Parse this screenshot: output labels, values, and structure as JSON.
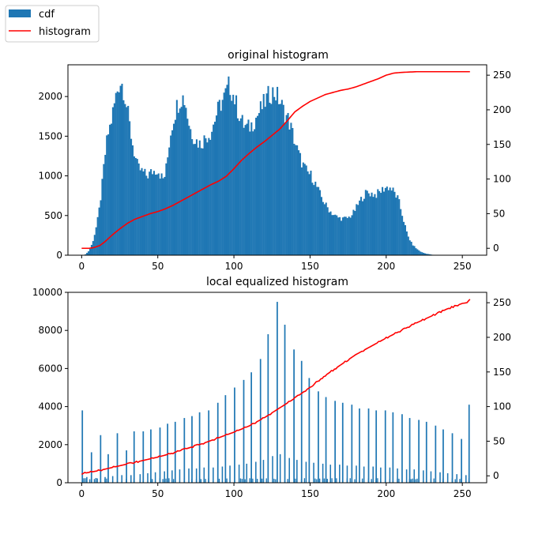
{
  "legend": {
    "placement": "upper-left",
    "items": [
      {
        "label": "cdf",
        "kind": "patch",
        "color": "#1f77b4"
      },
      {
        "label": "histogram",
        "kind": "line",
        "color": "#ff0000"
      }
    ]
  },
  "chart_data": [
    {
      "type": "bar",
      "title": "original histogram",
      "xlabel": "",
      "ylabel": "",
      "xlim": [
        -9,
        266
      ],
      "ylim": [
        0,
        2400
      ],
      "y2lim": [
        -10,
        265
      ],
      "xticks": [
        0,
        50,
        100,
        150,
        200,
        250
      ],
      "yticks": [
        0,
        500,
        1000,
        1500,
        2000
      ],
      "y2ticks": [
        0,
        50,
        100,
        150,
        200,
        250
      ],
      "bar_color": "#1f77b4",
      "line_color": "#ff0000",
      "histogram_anchors": [
        [
          0,
          0
        ],
        [
          2,
          5
        ],
        [
          3,
          20
        ],
        [
          5,
          60
        ],
        [
          7,
          150
        ],
        [
          9,
          300
        ],
        [
          11,
          500
        ],
        [
          13,
          800
        ],
        [
          15,
          1200
        ],
        [
          17,
          1500
        ],
        [
          19,
          1650
        ],
        [
          21,
          1850
        ],
        [
          23,
          2050
        ],
        [
          25,
          2200
        ],
        [
          27,
          2150
        ],
        [
          29,
          1950
        ],
        [
          31,
          1700
        ],
        [
          33,
          1450
        ],
        [
          35,
          1250
        ],
        [
          37,
          1100
        ],
        [
          40,
          1050
        ],
        [
          43,
          1000
        ],
        [
          46,
          1050
        ],
        [
          50,
          1080
        ],
        [
          52,
          1000
        ],
        [
          54,
          950
        ],
        [
          56,
          1150
        ],
        [
          58,
          1500
        ],
        [
          60,
          1700
        ],
        [
          62,
          1850
        ],
        [
          64,
          1950
        ],
        [
          66,
          2000
        ],
        [
          68,
          1950
        ],
        [
          70,
          1700
        ],
        [
          72,
          1550
        ],
        [
          75,
          1450
        ],
        [
          78,
          1400
        ],
        [
          82,
          1500
        ],
        [
          85,
          1550
        ],
        [
          88,
          1750
        ],
        [
          91,
          1900
        ],
        [
          94,
          2000
        ],
        [
          97,
          2150
        ],
        [
          100,
          2000
        ],
        [
          103,
          1800
        ],
        [
          106,
          1650
        ],
        [
          109,
          1600
        ],
        [
          112,
          1650
        ],
        [
          115,
          1750
        ],
        [
          118,
          1850
        ],
        [
          121,
          1950
        ],
        [
          124,
          2050
        ],
        [
          127,
          2050
        ],
        [
          130,
          1950
        ],
        [
          133,
          1800
        ],
        [
          136,
          1700
        ],
        [
          139,
          1500
        ],
        [
          142,
          1300
        ],
        [
          145,
          1150
        ],
        [
          148,
          1050
        ],
        [
          151,
          1000
        ],
        [
          154,
          880
        ],
        [
          157,
          750
        ],
        [
          160,
          640
        ],
        [
          163,
          560
        ],
        [
          166,
          500
        ],
        [
          169,
          470
        ],
        [
          172,
          460
        ],
        [
          175,
          470
        ],
        [
          178,
          520
        ],
        [
          181,
          620
        ],
        [
          184,
          720
        ],
        [
          187,
          790
        ],
        [
          190,
          780
        ],
        [
          193,
          760
        ],
        [
          196,
          800
        ],
        [
          199,
          850
        ],
        [
          202,
          860
        ],
        [
          205,
          800
        ],
        [
          208,
          700
        ],
        [
          210,
          550
        ],
        [
          212,
          400
        ],
        [
          214,
          250
        ],
        [
          217,
          140
        ],
        [
          220,
          80
        ],
        [
          223,
          40
        ],
        [
          226,
          20
        ],
        [
          229,
          10
        ],
        [
          232,
          0
        ],
        [
          255,
          0
        ]
      ],
      "cdf_anchors": [
        [
          0,
          0
        ],
        [
          5,
          0
        ],
        [
          8,
          1
        ],
        [
          12,
          4
        ],
        [
          15,
          9
        ],
        [
          20,
          19
        ],
        [
          25,
          28
        ],
        [
          30,
          36
        ],
        [
          35,
          42
        ],
        [
          40,
          46
        ],
        [
          45,
          50
        ],
        [
          50,
          53
        ],
        [
          55,
          57
        ],
        [
          60,
          62
        ],
        [
          65,
          68
        ],
        [
          70,
          74
        ],
        [
          75,
          80
        ],
        [
          80,
          86
        ],
        [
          85,
          92
        ],
        [
          90,
          97
        ],
        [
          95,
          104
        ],
        [
          100,
          115
        ],
        [
          105,
          127
        ],
        [
          110,
          137
        ],
        [
          115,
          146
        ],
        [
          120,
          154
        ],
        [
          125,
          163
        ],
        [
          130,
          172
        ],
        [
          135,
          184
        ],
        [
          140,
          197
        ],
        [
          145,
          205
        ],
        [
          150,
          212
        ],
        [
          155,
          217
        ],
        [
          160,
          222
        ],
        [
          165,
          225
        ],
        [
          170,
          228
        ],
        [
          175,
          230
        ],
        [
          180,
          233
        ],
        [
          185,
          237
        ],
        [
          190,
          241
        ],
        [
          195,
          245
        ],
        [
          200,
          250
        ],
        [
          205,
          253
        ],
        [
          210,
          254
        ],
        [
          220,
          255
        ],
        [
          255,
          255
        ]
      ]
    },
    {
      "type": "bar",
      "title": "local equalized histogram",
      "xlabel": "",
      "ylabel": "",
      "xlim": [
        -9,
        266
      ],
      "ylim": [
        0,
        10000
      ],
      "y2lim": [
        -10,
        265
      ],
      "xticks": [
        0,
        50,
        100,
        150,
        200,
        250
      ],
      "yticks": [
        0,
        2000,
        4000,
        6000,
        8000,
        10000
      ],
      "y2ticks": [
        0,
        50,
        100,
        150,
        200,
        250
      ],
      "bar_color": "#1f77b4",
      "line_color": "#ff0000",
      "major_spikes": [
        [
          0,
          3800
        ],
        [
          6,
          1600
        ],
        [
          12,
          2500
        ],
        [
          17,
          1500
        ],
        [
          23,
          2600
        ],
        [
          29,
          1700
        ],
        [
          34,
          2700
        ],
        [
          40,
          2700
        ],
        [
          45,
          2800
        ],
        [
          51,
          2900
        ],
        [
          56,
          3100
        ],
        [
          61,
          3200
        ],
        [
          67,
          3400
        ],
        [
          72,
          3500
        ],
        [
          77,
          3700
        ],
        [
          83,
          3800
        ],
        [
          89,
          4200
        ],
        [
          94,
          4600
        ],
        [
          100,
          5000
        ],
        [
          106,
          5400
        ],
        [
          111,
          5800
        ],
        [
          117,
          6500
        ],
        [
          122,
          7800
        ],
        [
          128,
          9500
        ],
        [
          133,
          8300
        ],
        [
          139,
          7000
        ],
        [
          144,
          6400
        ],
        [
          149,
          5500
        ],
        [
          155,
          4800
        ],
        [
          160,
          4500
        ],
        [
          166,
          4300
        ],
        [
          171,
          4200
        ],
        [
          177,
          4100
        ],
        [
          182,
          3900
        ],
        [
          188,
          3900
        ],
        [
          193,
          3800
        ],
        [
          199,
          3800
        ],
        [
          204,
          3700
        ],
        [
          210,
          3600
        ],
        [
          215,
          3400
        ],
        [
          221,
          3300
        ],
        [
          226,
          3200
        ],
        [
          232,
          3000
        ],
        [
          237,
          2800
        ],
        [
          243,
          2600
        ],
        [
          249,
          2300
        ],
        [
          254,
          4100
        ]
      ],
      "minor_spikes": [
        [
          3,
          300
        ],
        [
          9,
          250
        ],
        [
          15,
          300
        ],
        [
          20,
          350
        ],
        [
          26,
          400
        ],
        [
          32,
          400
        ],
        [
          38,
          450
        ],
        [
          43,
          500
        ],
        [
          48,
          550
        ],
        [
          54,
          600
        ],
        [
          59,
          650
        ],
        [
          64,
          700
        ],
        [
          70,
          750
        ],
        [
          75,
          750
        ],
        [
          80,
          800
        ],
        [
          86,
          800
        ],
        [
          92,
          850
        ],
        [
          97,
          900
        ],
        [
          103,
          950
        ],
        [
          108,
          1000
        ],
        [
          114,
          1100
        ],
        [
          119,
          1200
        ],
        [
          125,
          1400
        ],
        [
          130,
          1500
        ],
        [
          136,
          1300
        ],
        [
          141,
          1200
        ],
        [
          147,
          1100
        ],
        [
          152,
          1050
        ],
        [
          158,
          1000
        ],
        [
          163,
          950
        ],
        [
          169,
          950
        ],
        [
          174,
          900
        ],
        [
          180,
          900
        ],
        [
          185,
          850
        ],
        [
          191,
          850
        ],
        [
          196,
          800
        ],
        [
          202,
          800
        ],
        [
          207,
          750
        ],
        [
          213,
          700
        ],
        [
          218,
          700
        ],
        [
          224,
          650
        ],
        [
          229,
          600
        ],
        [
          235,
          550
        ],
        [
          240,
          500
        ],
        [
          246,
          450
        ],
        [
          252,
          400
        ]
      ],
      "cdf_anchors": [
        [
          0,
          3
        ],
        [
          10,
          7
        ],
        [
          20,
          12
        ],
        [
          30,
          17
        ],
        [
          40,
          22
        ],
        [
          50,
          27
        ],
        [
          60,
          33
        ],
        [
          70,
          40
        ],
        [
          80,
          47
        ],
        [
          90,
          55
        ],
        [
          100,
          63
        ],
        [
          110,
          72
        ],
        [
          120,
          84
        ],
        [
          130,
          98
        ],
        [
          140,
          112
        ],
        [
          150,
          128
        ],
        [
          160,
          145
        ],
        [
          170,
          160
        ],
        [
          180,
          175
        ],
        [
          190,
          187
        ],
        [
          200,
          199
        ],
        [
          210,
          210
        ],
        [
          220,
          221
        ],
        [
          230,
          231
        ],
        [
          240,
          241
        ],
        [
          250,
          249
        ],
        [
          253,
          250
        ],
        [
          255,
          255
        ]
      ]
    }
  ]
}
